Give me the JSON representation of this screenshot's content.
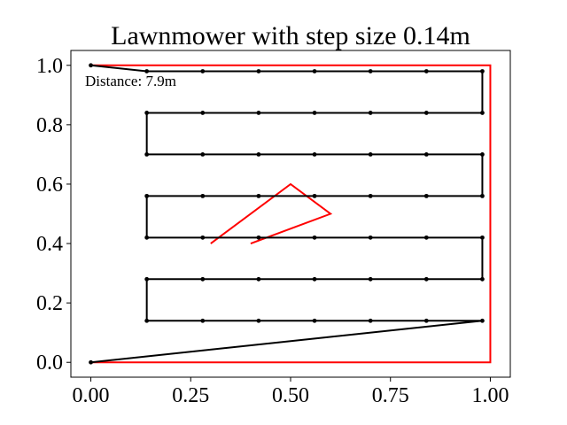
{
  "chart_data": {
    "type": "line",
    "title": "Lawnmower with step size 0.14m",
    "xlabel": "",
    "ylabel": "",
    "xlim": [
      -0.05,
      1.05
    ],
    "ylim": [
      -0.05,
      1.05
    ],
    "xticks": [
      0.0,
      0.25,
      0.5,
      0.75,
      1.0
    ],
    "xtick_labels": [
      "0.00",
      "0.25",
      "0.50",
      "0.75",
      "1.00"
    ],
    "yticks": [
      0.0,
      0.2,
      0.4,
      0.6,
      0.8,
      1.0
    ],
    "ytick_labels": [
      "0.0",
      "0.2",
      "0.4",
      "0.6",
      "0.8",
      "1.0"
    ],
    "grid": false,
    "annotation": "Distance: 7.9m",
    "series": [
      {
        "color": "#ff0000",
        "markers": false,
        "points": [
          [
            0,
            1
          ],
          [
            1,
            1
          ],
          [
            1,
            0
          ],
          [
            0,
            0
          ]
        ]
      },
      {
        "color": "#ff0000",
        "markers": false,
        "points": [
          [
            0.3,
            0.4
          ],
          [
            0.5,
            0.6
          ],
          [
            0.6,
            0.5
          ],
          [
            0.4,
            0.4
          ]
        ]
      },
      {
        "color": "#000000",
        "markers": true,
        "points": [
          [
            0,
            1
          ],
          [
            0.14,
            0.98
          ],
          [
            0.28,
            0.98
          ],
          [
            0.42,
            0.98
          ],
          [
            0.56,
            0.98
          ],
          [
            0.7,
            0.98
          ],
          [
            0.84,
            0.98
          ],
          [
            0.98,
            0.98
          ],
          [
            0.98,
            0.84
          ],
          [
            0.84,
            0.84
          ],
          [
            0.7,
            0.84
          ],
          [
            0.56,
            0.84
          ],
          [
            0.42,
            0.84
          ],
          [
            0.28,
            0.84
          ],
          [
            0.14,
            0.84
          ],
          [
            0.14,
            0.7
          ],
          [
            0.28,
            0.7
          ],
          [
            0.42,
            0.7
          ],
          [
            0.56,
            0.7
          ],
          [
            0.7,
            0.7
          ],
          [
            0.84,
            0.7
          ],
          [
            0.98,
            0.7
          ],
          [
            0.98,
            0.56
          ],
          [
            0.84,
            0.56
          ],
          [
            0.7,
            0.56
          ],
          [
            0.56,
            0.56
          ],
          [
            0.42,
            0.56
          ],
          [
            0.28,
            0.56
          ],
          [
            0.14,
            0.56
          ],
          [
            0.14,
            0.42
          ],
          [
            0.28,
            0.42
          ],
          [
            0.42,
            0.42
          ],
          [
            0.56,
            0.42
          ],
          [
            0.7,
            0.42
          ],
          [
            0.84,
            0.42
          ],
          [
            0.98,
            0.42
          ],
          [
            0.98,
            0.28
          ],
          [
            0.84,
            0.28
          ],
          [
            0.7,
            0.28
          ],
          [
            0.56,
            0.28
          ],
          [
            0.42,
            0.28
          ],
          [
            0.28,
            0.28
          ],
          [
            0.14,
            0.28
          ],
          [
            0.14,
            0.14
          ],
          [
            0.28,
            0.14
          ],
          [
            0.42,
            0.14
          ],
          [
            0.56,
            0.14
          ],
          [
            0.7,
            0.14
          ],
          [
            0.84,
            0.14
          ],
          [
            0.98,
            0.14
          ],
          [
            0,
            0
          ]
        ]
      }
    ]
  }
}
